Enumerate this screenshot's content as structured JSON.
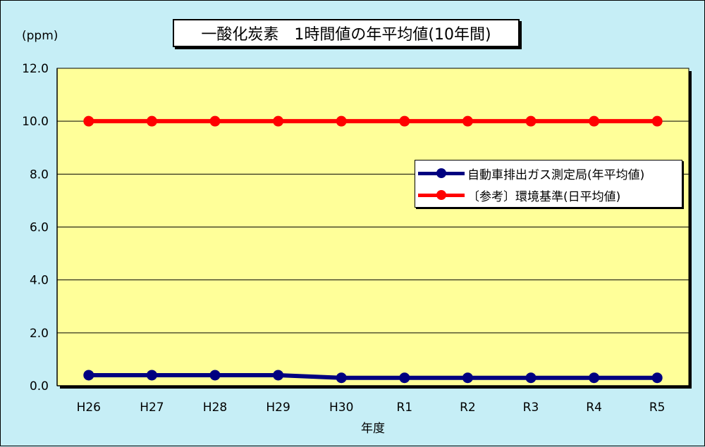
{
  "title": "一酸化炭素　1時間値の年平均値(10年間)",
  "unit": "(ppm)",
  "chart_data": {
    "type": "line",
    "categories": [
      "H26",
      "H27",
      "H28",
      "H29",
      "H30",
      "R1",
      "R2",
      "R3",
      "R4",
      "R5"
    ],
    "xlabel": "年度",
    "ylabel": "(ppm)",
    "ylim": [
      0,
      12
    ],
    "yticks": [
      "0.0",
      "2.0",
      "4.0",
      "6.0",
      "8.0",
      "10.0",
      "12.0"
    ],
    "grid": true,
    "legend_position": "right",
    "plot_background": "#ffff99",
    "series": [
      {
        "name": "自動車排出ガス測定局(年平均値)",
        "color": "#000080",
        "values": [
          0.4,
          0.4,
          0.4,
          0.4,
          0.3,
          0.3,
          0.3,
          0.3,
          0.3,
          0.3
        ]
      },
      {
        "name": "〔参考〕環境基準(日平均値)",
        "color": "#ff0000",
        "values": [
          10.0,
          10.0,
          10.0,
          10.0,
          10.0,
          10.0,
          10.0,
          10.0,
          10.0,
          10.0
        ]
      }
    ]
  }
}
